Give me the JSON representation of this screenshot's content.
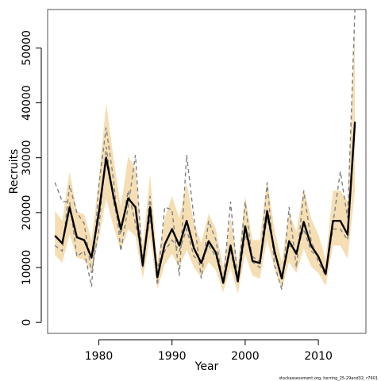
{
  "chart_data": {
    "type": "line",
    "xlabel": "Year",
    "ylabel": "Recruits",
    "xlim": [
      1973,
      2016.5
    ],
    "ylim": [
      -2000,
      57000
    ],
    "xticks": [
      1980,
      1990,
      2000,
      2010
    ],
    "yticks": [
      0,
      10000,
      20000,
      30000,
      40000,
      50000
    ],
    "grid": false,
    "legend": "none",
    "credit": "stockassessment.org, herring_25-29and32, r7601",
    "colors": {
      "band": "#f5deb3",
      "estimate": "#000000",
      "dashed": "#808080",
      "axis": "#000000",
      "box": "#555555"
    },
    "x": [
      1974,
      1975,
      1976,
      1977,
      1978,
      1979,
      1980,
      1981,
      1982,
      1983,
      1984,
      1985,
      1986,
      1987,
      1988,
      1989,
      1990,
      1991,
      1992,
      1993,
      1994,
      1995,
      1996,
      1997,
      1998,
      1999,
      2000,
      2001,
      2002,
      2003,
      2004,
      2005,
      2006,
      2007,
      2008,
      2009,
      2010,
      2011,
      2012,
      2013,
      2014,
      2015
    ],
    "series": [
      {
        "role": "estimate",
        "values": [
          15800,
          14400,
          21000,
          15500,
          15000,
          11800,
          20000,
          30000,
          23000,
          17000,
          22600,
          21000,
          10400,
          21000,
          8200,
          14200,
          17000,
          14000,
          18500,
          13500,
          10800,
          14800,
          12700,
          7200,
          14000,
          7500,
          17500,
          11200,
          10800,
          20300,
          13000,
          8000,
          14800,
          12500,
          18300,
          14000,
          12000,
          8800,
          18500,
          18500,
          16000,
          36500
        ]
      },
      {
        "role": "upper",
        "values": [
          20300,
          18500,
          27500,
          20200,
          19700,
          15000,
          26000,
          40000,
          30000,
          21000,
          30200,
          28000,
          14000,
          27000,
          11000,
          19000,
          23000,
          19000,
          25500,
          18000,
          14500,
          19800,
          17000,
          10000,
          19000,
          10500,
          23000,
          15000,
          15000,
          26000,
          17000,
          11000,
          20000,
          16500,
          24500,
          19000,
          16000,
          11500,
          24000,
          24000,
          22000,
          54000
        ]
      },
      {
        "role": "lower",
        "values": [
          12300,
          10900,
          16000,
          11800,
          11400,
          9200,
          15300,
          22500,
          17500,
          13000,
          17000,
          15700,
          7900,
          15500,
          6000,
          10500,
          12500,
          10000,
          13200,
          10000,
          8200,
          11000,
          9500,
          5500,
          10000,
          5200,
          12500,
          8500,
          8000,
          15000,
          9800,
          6000,
          11000,
          9000,
          13500,
          10200,
          9000,
          6600,
          14000,
          14000,
          11600,
          24000
        ]
      },
      {
        "role": "dashed-1",
        "values": [
          25500,
          22000,
          22000,
          12000,
          13000,
          6500,
          25000,
          35500,
          26000,
          13000,
          21000,
          30500,
          10000,
          23000,
          6800,
          21000,
          20500,
          8500,
          30500,
          19000,
          8000,
          18500,
          15000,
          7000,
          22000,
          7500,
          22000,
          11000,
          10000,
          25500,
          10500,
          6000,
          21000,
          10000,
          24000,
          15000,
          11000,
          8500,
          18000,
          27500,
          19000,
          57000
        ]
      },
      {
        "role": "dashed-2",
        "values": [
          14000,
          13000,
          25000,
          20000,
          18000,
          9000,
          17000,
          32000,
          22000,
          16000,
          24000,
          18000,
          12000,
          19000,
          10000,
          13000,
          15000,
          13000,
          17000,
          12000,
          11000,
          14000,
          12000,
          8000,
          13000,
          7000,
          16000,
          12000,
          11000,
          19000,
          13000,
          8500,
          14000,
          13000,
          17000,
          13000,
          12000,
          9000,
          17000,
          17000,
          15000,
          37000
        ]
      }
    ]
  }
}
